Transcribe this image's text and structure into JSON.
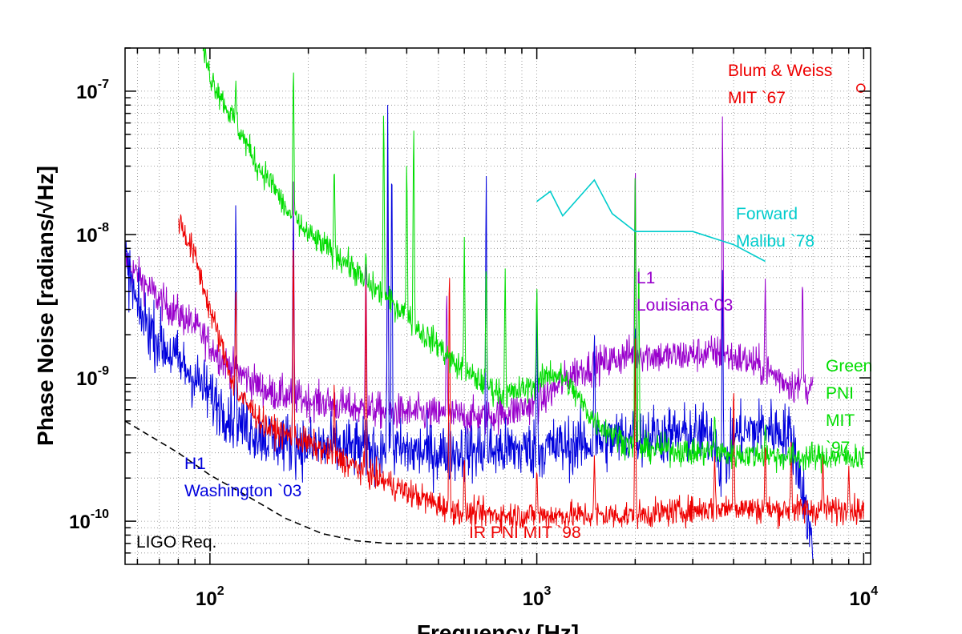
{
  "chart_data": {
    "type": "line",
    "title": "",
    "xlabel": "Frequency [Hz]",
    "ylabel": "Phase Noise [radians/√Hz]",
    "x_scale": "log",
    "y_scale": "log",
    "xlim": [
      55,
      10500
    ],
    "ylim": [
      5e-11,
      2e-07
    ],
    "grid": true,
    "x_ticks": [
      {
        "value": 100,
        "base": "10",
        "exp": "2"
      },
      {
        "value": 1000,
        "base": "10",
        "exp": "3"
      },
      {
        "value": 10000,
        "base": "10",
        "exp": "4"
      }
    ],
    "y_ticks": [
      {
        "value": 1e-10,
        "base": "10",
        "exp": "-10"
      },
      {
        "value": 1e-09,
        "base": "10",
        "exp": "-9"
      },
      {
        "value": 1e-08,
        "base": "10",
        "exp": "-8"
      },
      {
        "value": 1e-07,
        "base": "10",
        "exp": "-7"
      }
    ],
    "series": [
      {
        "key": "ligo",
        "color": "#000000",
        "dashed": true,
        "x": [
          55,
          80,
          100,
          130,
          170,
          220,
          280,
          350,
          500,
          800,
          10000
        ],
        "y": [
          5e-10,
          3e-10,
          2.1e-10,
          1.5e-10,
          1.05e-10,
          8.2e-11,
          7.3e-11,
          7e-11,
          7e-11,
          7e-11,
          7e-11
        ]
      },
      {
        "key": "l1",
        "color": "#9900cc",
        "noise": 0.09,
        "x": [
          55,
          70,
          90,
          110,
          150,
          200,
          300,
          500,
          700,
          1000,
          1300,
          2000,
          2500,
          3500,
          4500,
          6000,
          7000
        ],
        "y": [
          6.5e-09,
          3.5e-09,
          2.3e-09,
          1.3e-09,
          8e-10,
          7e-10,
          6e-10,
          5.5e-10,
          5.3e-10,
          6.5e-10,
          1.1e-09,
          1.5e-09,
          1.4e-09,
          1.5e-09,
          1.3e-09,
          9e-10,
          8.5e-10
        ],
        "spikes": [
          [
            180,
            2.6e-08
          ],
          [
            300,
            8.5e-09
          ],
          [
            350,
            2.2e-08
          ],
          [
            530,
            5e-09
          ],
          [
            1000,
            4e-09
          ],
          [
            2000,
            4.5e-08
          ],
          [
            3700,
            8.5e-08
          ],
          [
            5000,
            5e-09
          ],
          [
            6500,
            6e-09
          ]
        ]
      },
      {
        "key": "h1",
        "color": "#0000dd",
        "noise": 0.15,
        "x": [
          55,
          60,
          70,
          80,
          90,
          100,
          120,
          150,
          200,
          300,
          500,
          1000,
          1500,
          2000,
          3000,
          3500,
          3700,
          4000,
          5000,
          6000,
          6500,
          7000
        ],
        "y": [
          7e-09,
          3e-09,
          1.8e-09,
          1.3e-09,
          1e-09,
          7.5e-10,
          5e-10,
          3.8e-10,
          3.3e-10,
          3.2e-10,
          3e-10,
          3.2e-10,
          3.5e-10,
          4e-10,
          4e-10,
          4e-10,
          2e-10,
          4e-10,
          4.5e-10,
          4e-10,
          1.7e-10,
          6e-11
        ],
        "spikes": [
          [
            120,
            2.3e-08
          ],
          [
            180,
            1.5e-08
          ],
          [
            350,
            1.2e-07
          ],
          [
            360,
            6e-08
          ],
          [
            700,
            4e-08
          ],
          [
            1000,
            4e-09
          ],
          [
            1500,
            2.5e-09
          ],
          [
            2000,
            3e-09
          ],
          [
            3700,
            7e-09
          ]
        ]
      },
      {
        "key": "ir",
        "color": "#ee0000",
        "noise": 0.07,
        "x": [
          80,
          90,
          100,
          120,
          150,
          200,
          300,
          400,
          500,
          600,
          800,
          1000,
          1500,
          2000,
          3000,
          4000,
          5000,
          7000,
          10000
        ],
        "y": [
          1.3e-08,
          7e-09,
          3e-09,
          8e-10,
          4.5e-10,
          3.5e-10,
          2.2e-10,
          1.6e-10,
          1.3e-10,
          1.15e-10,
          1.1e-10,
          1.1e-10,
          1.1e-10,
          1.1e-10,
          1.2e-10,
          1.25e-10,
          1.2e-10,
          1.2e-10,
          1.2e-10
        ],
        "spikes": [
          [
            120,
            5e-09
          ],
          [
            180,
            1.2e-08
          ],
          [
            240,
            1e-09
          ],
          [
            300,
            5e-09
          ],
          [
            540,
            1e-08
          ],
          [
            600,
            3e-10
          ],
          [
            1000,
            2.5e-10
          ],
          [
            1500,
            3e-10
          ],
          [
            2000,
            1.9e-09
          ],
          [
            3500,
            3e-10
          ],
          [
            4000,
            1.1e-09
          ],
          [
            5000,
            4e-10
          ],
          [
            6000,
            4e-10
          ],
          [
            7500,
            3e-10
          ],
          [
            9000,
            2.5e-10
          ]
        ]
      },
      {
        "key": "green",
        "color": "#00dd00",
        "noise": 0.07,
        "x": [
          95,
          100,
          105,
          110,
          115,
          120,
          125,
          130,
          135,
          140,
          150,
          160,
          170,
          180,
          200,
          220,
          240,
          260,
          280,
          300,
          320,
          350,
          400,
          450,
          500,
          550,
          600,
          700,
          800,
          1000,
          1100,
          1200,
          1300,
          1500,
          2000,
          2500,
          3000,
          3500,
          4000,
          5000,
          6000,
          7000,
          10000
        ],
        "y": [
          2e-07,
          1.3e-07,
          1.05e-07,
          8.5e-08,
          7e-08,
          6e-08,
          5e-08,
          4.2e-08,
          3.5e-08,
          3e-08,
          2.5e-08,
          2e-08,
          1.5e-08,
          1.3e-08,
          1e-08,
          8.5e-09,
          7.5e-09,
          6.5e-09,
          5.5e-09,
          4.5e-09,
          4.2e-09,
          3.5e-09,
          2.8e-09,
          2e-09,
          1.7e-09,
          1.3e-09,
          1.1e-09,
          9e-10,
          7.5e-10,
          9e-10,
          1.1e-09,
          1e-09,
          8e-10,
          5e-10,
          3.2e-10,
          3.2e-10,
          3e-10,
          3.1e-10,
          2.9e-10,
          2.9e-10,
          2.8e-10,
          2.8e-10,
          2.8e-10
        ],
        "spikes": [
          [
            120,
            1.2e-07
          ],
          [
            180,
            2e-07
          ],
          [
            240,
            3.5e-08
          ],
          [
            300,
            8e-09
          ],
          [
            340,
            1e-07
          ],
          [
            400,
            4e-08
          ],
          [
            420,
            8e-08
          ],
          [
            600,
            1e-08
          ],
          [
            700,
            8e-09
          ],
          [
            800,
            6.5e-09
          ],
          [
            1000,
            5e-09
          ],
          [
            2000,
            4.2e-08
          ],
          [
            2050,
            1e-08
          ],
          [
            3500,
            6e-10
          ],
          [
            5000,
            5e-10
          ]
        ]
      },
      {
        "key": "forward",
        "color": "#00cccc",
        "x": [
          1000,
          1100,
          1200,
          1500,
          1700,
          2000,
          2400,
          3000,
          4000,
          5000
        ],
        "y": [
          1.7e-08,
          2e-08,
          1.35e-08,
          2.4e-08,
          1.4e-08,
          1.05e-08,
          1.05e-08,
          1.05e-08,
          8.5e-09,
          6.5e-09
        ]
      },
      {
        "key": "blum",
        "color": "#ee0000",
        "marker": "circle",
        "x": [
          9800
        ],
        "y": [
          1.05e-07
        ]
      }
    ],
    "annotations": [
      {
        "key": "blum_1",
        "text": "Blum & Weiss",
        "color": "#ee0000"
      },
      {
        "key": "blum_2",
        "text": "MIT `67",
        "color": "#ee0000"
      },
      {
        "key": "forward_1",
        "text": "Forward",
        "color": "#00cccc"
      },
      {
        "key": "forward_2",
        "text": "Malibu `78",
        "color": "#00cccc"
      },
      {
        "key": "l1_1",
        "text": "L1",
        "color": "#9900cc"
      },
      {
        "key": "l1_2",
        "text": "Louisiana`03",
        "color": "#9900cc"
      },
      {
        "key": "green_1",
        "text": "Green",
        "color": "#00dd00"
      },
      {
        "key": "green_2",
        "text": "PNI",
        "color": "#00dd00"
      },
      {
        "key": "green_3",
        "text": "MIT",
        "color": "#00dd00"
      },
      {
        "key": "green_4",
        "text": "`97",
        "color": "#00dd00"
      },
      {
        "key": "h1_1",
        "text": "H1",
        "color": "#0000dd"
      },
      {
        "key": "h1_2",
        "text": "Washington `03",
        "color": "#0000dd"
      },
      {
        "key": "ir",
        "text": "IR PNI MIT `98",
        "color": "#ee0000"
      },
      {
        "key": "ligo",
        "text": "LIGO Req.",
        "color": "#000000"
      }
    ]
  }
}
